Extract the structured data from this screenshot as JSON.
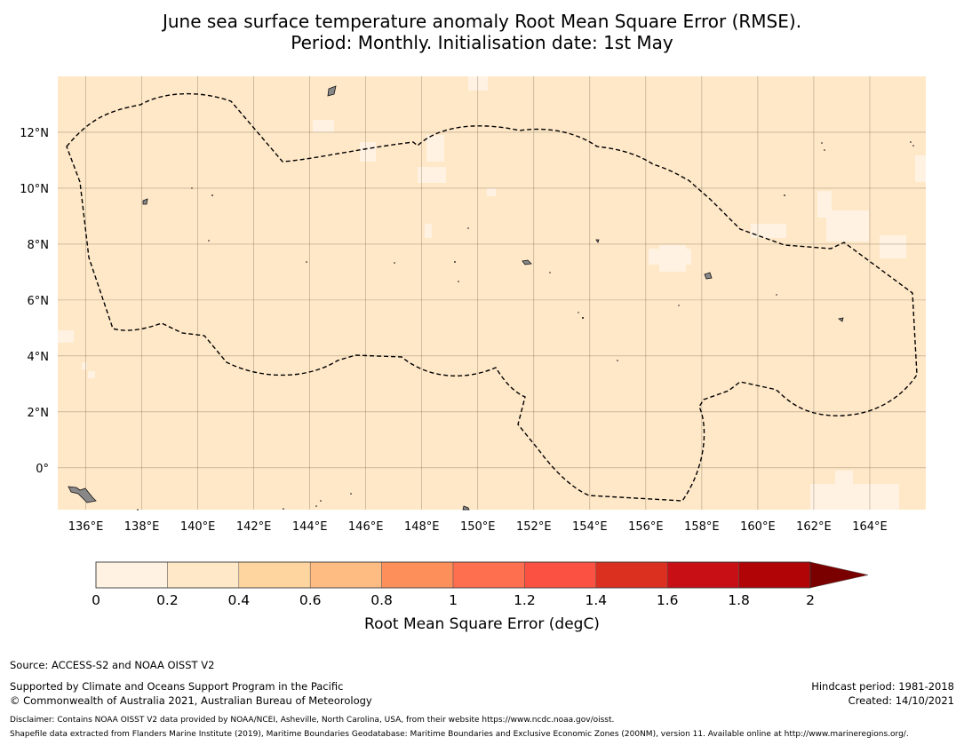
{
  "title_line1": "June sea surface temperature anomaly Root Mean Square Error (RMSE).",
  "title_line2": "Period: Monthly. Initialisation date: 1st May",
  "map": {
    "lon_labels": [
      "136°E",
      "138°E",
      "140°E",
      "142°E",
      "144°E",
      "146°E",
      "148°E",
      "150°E",
      "152°E",
      "154°E",
      "156°E",
      "158°E",
      "160°E",
      "162°E",
      "164°E"
    ],
    "lon_values": [
      136,
      138,
      140,
      142,
      144,
      146,
      148,
      150,
      152,
      154,
      156,
      158,
      160,
      162,
      164
    ],
    "lat_labels": [
      "12°N",
      "10°N",
      "8°N",
      "6°N",
      "4°N",
      "2°N",
      "0°"
    ],
    "lat_values": [
      12,
      10,
      8,
      6,
      4,
      2,
      0
    ],
    "lon_range": [
      135.0,
      166.0
    ],
    "lat_range": [
      -1.5,
      14.0
    ],
    "background_color": "#ffe8c8",
    "low_color": "#fff2e2",
    "boundary": "dashed EEZ outline"
  },
  "colorbar": {
    "ticks": [
      "0",
      "0.2",
      "0.4",
      "0.6",
      "0.8",
      "1",
      "1.2",
      "1.4",
      "1.6",
      "1.8",
      "2"
    ],
    "colors": [
      "#fff2e2",
      "#ffe8c8",
      "#fed59f",
      "#febb82",
      "#fd8f5a",
      "#fd6f4e",
      "#fb5142",
      "#db3020",
      "#c80f16",
      "#b00407"
    ],
    "extend_color": "#7a0000",
    "label": "Root Mean Square Error (degC)"
  },
  "footer": {
    "source": "Source: ACCESS-S2 and NOAA OISST V2",
    "supported": "Supported by Climate and Oceans Support Program in the Pacific",
    "copyright": "© Commonwealth of Australia 2021, Australian Bureau of Meteorology",
    "hindcast": "Hindcast period: 1981-2018",
    "created": "Created: 14/10/2021",
    "disclaimer": "Disclaimer: Contains NOAA OISST V2 data provided by NOAA/NCEI, Asheville, North Carolina, USA, from their website https://www.ncdc.noaa.gov/oisst.",
    "shapefile": "Shapefile data extracted from Flanders Marine Institute (2019), Maritime Boundaries Geodatabase: Maritime Boundaries and Exclusive Economic Zones (200NM), version 11. Available online at http://www.marineregions.org/."
  }
}
